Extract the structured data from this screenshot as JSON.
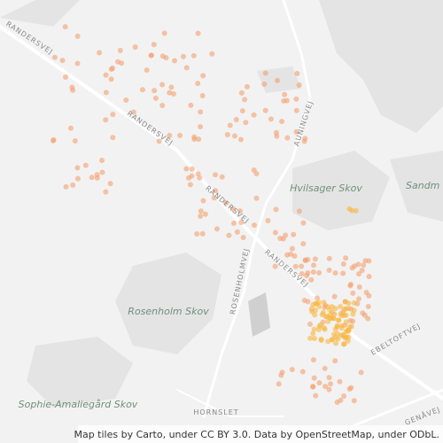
{
  "road_labels": [
    "RANDERSVEJ",
    "RANDERSVEJ",
    "RANDERSVEJ",
    "RANDERSVEJ",
    "AUNINGVEJ",
    "ROSENHOLMVEJ",
    "EBELTOFTVEJ",
    "GENÅVEJ"
  ],
  "place_labels": [
    "Hvilsager Skov",
    "Sandm",
    "Rosenholm Skov",
    "Sophie-Amaliegård Skov",
    "HORNSLET"
  ],
  "attribution": "Map tiles by Carto, under CC BY 3.0. Data by OpenStreetMap, under ODbL."
}
